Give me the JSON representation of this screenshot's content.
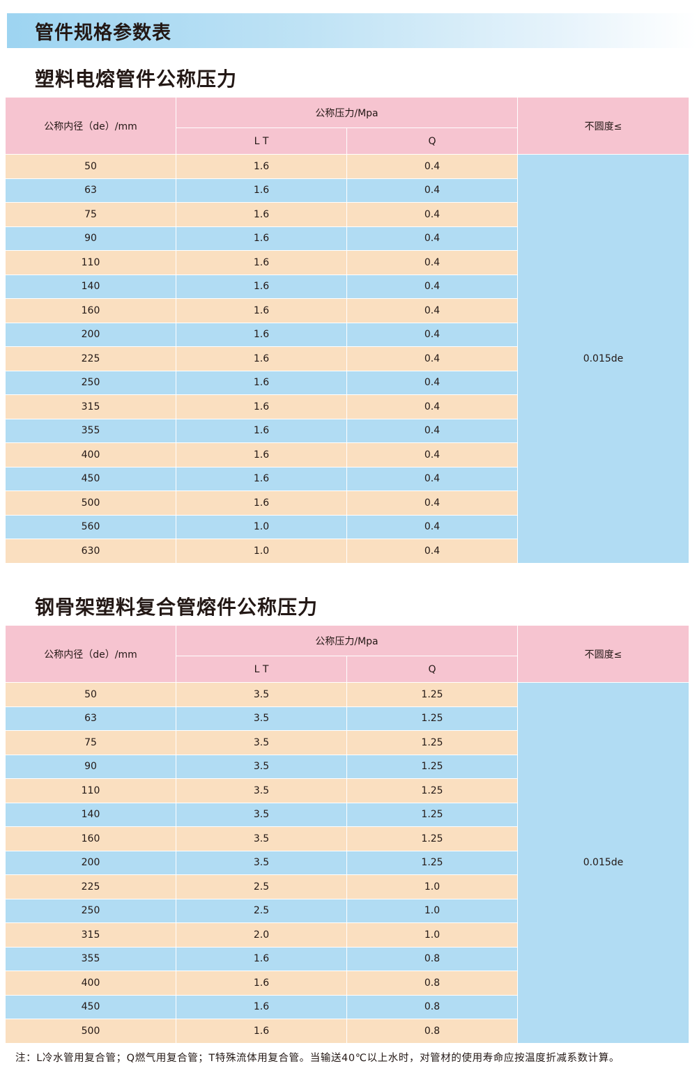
{
  "page_title": "管件规格参数表",
  "colors": {
    "header": "#f6c4d0",
    "row_odd": "#fadfc0",
    "row_even": "#b1dcf3"
  },
  "tables": [
    {
      "title": "塑料电熔管件公称压力",
      "headers": {
        "diameter": "公称内径（de）/mm",
        "pressure": "公称压力/Mpa",
        "lt": "L T",
        "q": "Q",
        "roundness": "不圆度≤"
      },
      "roundness_value": "0.015de",
      "rows": [
        [
          "50",
          "1.6",
          "0.4"
        ],
        [
          "63",
          "1.6",
          "0.4"
        ],
        [
          "75",
          "1.6",
          "0.4"
        ],
        [
          "90",
          "1.6",
          "0.4"
        ],
        [
          "110",
          "1.6",
          "0.4"
        ],
        [
          "140",
          "1.6",
          "0.4"
        ],
        [
          "160",
          "1.6",
          "0.4"
        ],
        [
          "200",
          "1.6",
          "0.4"
        ],
        [
          "225",
          "1.6",
          "0.4"
        ],
        [
          "250",
          "1.6",
          "0.4"
        ],
        [
          "315",
          "1.6",
          "0.4"
        ],
        [
          "355",
          "1.6",
          "0.4"
        ],
        [
          "400",
          "1.6",
          "0.4"
        ],
        [
          "450",
          "1.6",
          "0.4"
        ],
        [
          "500",
          "1.6",
          "0.4"
        ],
        [
          "560",
          "1.0",
          "0.4"
        ],
        [
          "630",
          "1.0",
          "0.4"
        ]
      ]
    },
    {
      "title": "钢骨架塑料复合管熔件公称压力",
      "headers": {
        "diameter": "公称内径（de）/mm",
        "pressure": "公称压力/Mpa",
        "lt": "L T",
        "q": "Q",
        "roundness": "不圆度≤"
      },
      "roundness_value": "0.015de",
      "rows": [
        [
          "50",
          "3.5",
          "1.25"
        ],
        [
          "63",
          "3.5",
          "1.25"
        ],
        [
          "75",
          "3.5",
          "1.25"
        ],
        [
          "90",
          "3.5",
          "1.25"
        ],
        [
          "110",
          "3.5",
          "1.25"
        ],
        [
          "140",
          "3.5",
          "1.25"
        ],
        [
          "160",
          "3.5",
          "1.25"
        ],
        [
          "200",
          "3.5",
          "1.25"
        ],
        [
          "225",
          "2.5",
          "1.0"
        ],
        [
          "250",
          "2.5",
          "1.0"
        ],
        [
          "315",
          "2.0",
          "1.0"
        ],
        [
          "355",
          "1.6",
          "0.8"
        ],
        [
          "400",
          "1.6",
          "0.8"
        ],
        [
          "450",
          "1.6",
          "0.8"
        ],
        [
          "500",
          "1.6",
          "0.8"
        ]
      ]
    }
  ],
  "note": "注：L冷水管用复合管；Q燃气用复合管；T特殊流体用复合管。当输送40℃以上水时，对管材的使用寿命应按温度折减系数计算。"
}
